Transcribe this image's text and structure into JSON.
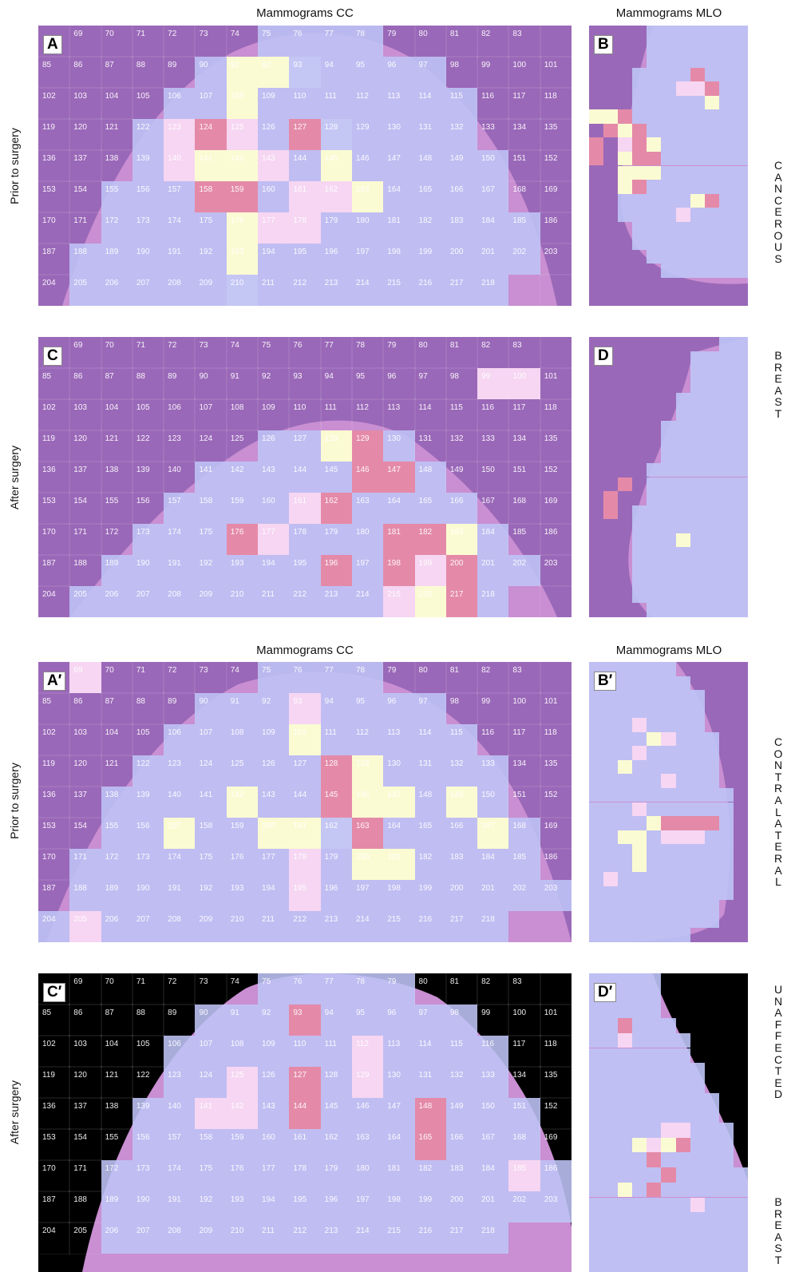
{
  "column_titles": {
    "cc_top": "Mammograms CC",
    "mlo_top": "Mammograms MLO",
    "cc_bottom": "Mammograms CC",
    "mlo_bottom": "Mammograms MLO"
  },
  "row_labels": {
    "r1": "Prior to surgery",
    "r2": "After surgery",
    "r3": "Prior to surgery",
    "r4": "After surgery"
  },
  "side_labels": {
    "cancerous": "CANCEROUS",
    "breast1": "BREAST",
    "contralateral": "CONTRALATERAL",
    "unaffected": "UNAFFECTED",
    "breast2": "BREAST"
  },
  "panel_letters": {
    "A": "A",
    "B": "B",
    "C": "C",
    "D": "D",
    "A2": "A′",
    "B2": "B′",
    "C2": "C′",
    "D2": "D′"
  },
  "colors": {
    "background_purple": "#9a68b8",
    "breast_region": "#c98fd2",
    "cell_lavender": "#c4c6f4",
    "cell_pink_light": "#f6d6f2",
    "cell_pink": "#e48aa8",
    "cell_yellow": "#fbfbd3",
    "black_background": "#000000"
  },
  "grid": {
    "rows": [
      [
        "",
        "69",
        "70",
        "71",
        "72",
        "73",
        "74",
        "75",
        "76",
        "77",
        "78",
        "79",
        "80",
        "81",
        "82",
        "83",
        "",
        ""
      ],
      [
        "85",
        "86",
        "87",
        "88",
        "89",
        "90",
        "91",
        "92",
        "93",
        "94",
        "95",
        "96",
        "97",
        "98",
        "99",
        "100",
        "101",
        ""
      ],
      [
        "102",
        "103",
        "104",
        "105",
        "106",
        "107",
        "108",
        "109",
        "110",
        "111",
        "112",
        "113",
        "114",
        "115",
        "116",
        "117",
        "118",
        ""
      ],
      [
        "119",
        "120",
        "121",
        "122",
        "123",
        "124",
        "125",
        "126",
        "127",
        "128",
        "129",
        "130",
        "131",
        "132",
        "133",
        "134",
        "135",
        ""
      ],
      [
        "136",
        "137",
        "138",
        "139",
        "140",
        "141",
        "142",
        "143",
        "144",
        "145",
        "146",
        "147",
        "148",
        "149",
        "150",
        "151",
        "152",
        ""
      ],
      [
        "153",
        "154",
        "155",
        "156",
        "157",
        "158",
        "159",
        "160",
        "161",
        "162",
        "163",
        "164",
        "165",
        "166",
        "167",
        "168",
        "169",
        ""
      ],
      [
        "170",
        "171",
        "172",
        "173",
        "174",
        "175",
        "176",
        "177",
        "178",
        "179",
        "180",
        "181",
        "182",
        "183",
        "184",
        "185",
        "186",
        ""
      ],
      [
        "187",
        "188",
        "189",
        "190",
        "191",
        "192",
        "193",
        "194",
        "195",
        "196",
        "197",
        "198",
        "199",
        "200",
        "201",
        "202",
        "203",
        ""
      ],
      [
        "204",
        "205",
        "206",
        "207",
        "208",
        "209",
        "210",
        "211",
        "212",
        "213",
        "214",
        "215",
        "216",
        "217",
        "218",
        "",
        "",
        ""
      ]
    ]
  },
  "panels": {
    "A": {
      "letter_key": "A",
      "style": "purple",
      "colors": {
        "91": "y",
        "92": "y",
        "108": "y",
        "93": "l",
        "123": "p",
        "124": "k",
        "125": "p",
        "127": "k",
        "128": "l",
        "140": "p",
        "141": "y",
        "142": "y",
        "143": "p",
        "145": "y",
        "158": "k",
        "159": "k",
        "161": "p",
        "162": "p",
        "163": "y",
        "176": "y",
        "177": "p",
        "178": "p",
        "193": "y",
        "210": "l"
      }
    },
    "C": {
      "letter_key": "C",
      "style": "purple",
      "colors": {
        "99": "p",
        "100": "p",
        "128": "y",
        "129": "k",
        "146": "k",
        "147": "k",
        "161": "p",
        "162": "k",
        "176": "k",
        "177": "p",
        "181": "k",
        "182": "k",
        "183": "y",
        "196": "k",
        "198": "k",
        "199": "p",
        "200": "k",
        "215": "p",
        "216": "y",
        "217": "k"
      }
    },
    "A2": {
      "letter_key": "A2",
      "style": "purple",
      "colors": {
        "68": "p",
        "69": "p",
        "93": "p",
        "110": "y",
        "128": "k",
        "129": "y",
        "142": "y",
        "145": "k",
        "146": "y",
        "147": "y",
        "149": "y",
        "157": "y",
        "160": "y",
        "161": "y",
        "162": "l",
        "163": "k",
        "167": "y",
        "180": "y",
        "181": "y",
        "178": "p",
        "195": "p",
        "205": "p"
      }
    },
    "C2": {
      "letter_key": "C2",
      "style": "black",
      "colors": {
        "93": "k",
        "112": "p",
        "127": "k",
        "125": "p",
        "129": "p",
        "141": "p",
        "142": "p",
        "144": "k",
        "148": "k",
        "165": "k",
        "185": "p"
      }
    }
  }
}
